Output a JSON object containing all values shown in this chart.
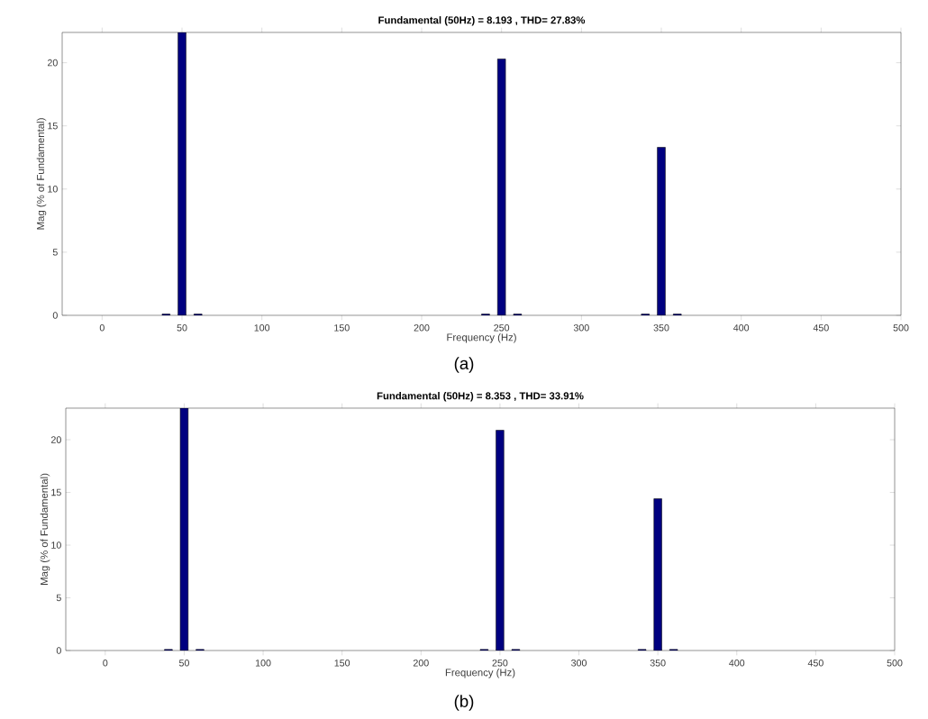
{
  "chart_data": [
    {
      "type": "bar",
      "title": "Fundamental (50Hz) = 8.193 , THD= 27.83%",
      "xlabel": "Frequency (Hz)",
      "ylabel": "Mag (% of Fundamental)",
      "x": [
        40,
        50,
        60,
        240,
        250,
        260,
        340,
        350,
        360
      ],
      "values": [
        0.1,
        22.4,
        0.1,
        0.1,
        20.3,
        0.1,
        0.1,
        13.3,
        0.1
      ],
      "color": "#000080",
      "xlim": [
        -25,
        500
      ],
      "xticks": [
        0,
        50,
        100,
        150,
        200,
        250,
        300,
        350,
        400,
        450,
        500
      ],
      "ylim": [
        0,
        22.4
      ],
      "yticks": [
        0,
        5,
        10,
        15,
        20
      ],
      "annotations": [
        "(a)"
      ]
    },
    {
      "type": "bar",
      "title": "Fundamental (50Hz) = 8.353 , THD= 33.91%",
      "xlabel": "Frequency (Hz)",
      "ylabel": "Mag (% of Fundamental)",
      "x": [
        40,
        50,
        60,
        240,
        250,
        260,
        340,
        350,
        360
      ],
      "values": [
        0.1,
        23,
        0.1,
        0.1,
        20.9,
        0.1,
        0.1,
        14.4,
        0.1
      ],
      "color": "#000080",
      "xlim": [
        -25,
        500
      ],
      "xticks": [
        0,
        50,
        100,
        150,
        200,
        250,
        300,
        350,
        400,
        450,
        500
      ],
      "ylim": [
        0,
        23
      ],
      "yticks": [
        0,
        5,
        10,
        15,
        20
      ],
      "annotations": [
        "(b)"
      ]
    }
  ]
}
